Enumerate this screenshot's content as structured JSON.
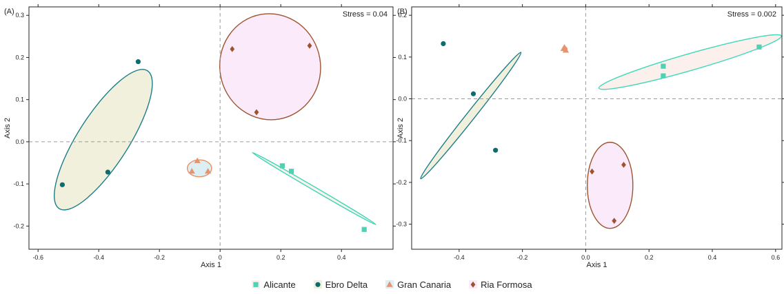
{
  "chart_data": [
    {
      "type": "scatter",
      "panel_label": "(A)",
      "stress_label": "Stress = 0.04",
      "xlabel": "Axis 1",
      "ylabel": "Axis 2",
      "xlim": [
        -0.63,
        0.57
      ],
      "ylim": [
        -0.255,
        0.32
      ],
      "xticks": [
        -0.6,
        -0.4,
        -0.2,
        0,
        0.2,
        0.4
      ],
      "xtick_labels": [
        "-0.6",
        "-0.4",
        "-0.2",
        "0",
        "0.2",
        "0.4"
      ],
      "yticks": [
        -0.2,
        -0.1,
        0,
        0.1,
        0.2,
        0.3
      ],
      "ytick_labels": [
        "-0.2",
        "-0.1",
        "0.0",
        "0.1",
        "0.2",
        "0.3"
      ],
      "reference_lines": {
        "x": 0,
        "y": 0
      },
      "grid": false,
      "series": [
        {
          "name": "Alicante",
          "marker": "square",
          "color": "#4fd1b4",
          "fill": "#fbf0ec",
          "stroke": "#3fd8b8",
          "points": [
            [
              0.205,
              -0.057
            ],
            [
              0.235,
              -0.07
            ],
            [
              0.475,
              -0.208
            ]
          ],
          "ellipse": {
            "cx": 0.31,
            "cy": -0.111,
            "rx": 0.236,
            "ry": 0.004,
            "angle": -30.3
          }
        },
        {
          "name": "Ebro Delta",
          "marker": "circle",
          "color": "#0b6e6e",
          "fill": "#f1f0dc",
          "stroke": "#1b7d8a",
          "points": [
            [
              -0.52,
              -0.102
            ],
            [
              -0.37,
              -0.072
            ],
            [
              -0.27,
              0.19
            ]
          ],
          "ellipse": {
            "cx": -0.385,
            "cy": 0.005,
            "rx": 0.27,
            "ry": 0.06,
            "angle": 57.4
          }
        },
        {
          "name": "Gran Canaria",
          "marker": "triangle",
          "color": "#e8926e",
          "fill": "#dcf0f3",
          "stroke": "#ea8f68",
          "points": [
            [
              -0.093,
              -0.07
            ],
            [
              -0.075,
              -0.045
            ],
            [
              -0.04,
              -0.07
            ]
          ],
          "ellipse": {
            "cx": -0.068,
            "cy": -0.063,
            "rx": 0.04,
            "ry": 0.02,
            "angle": 0
          }
        },
        {
          "name": "Ria Formosa",
          "marker": "diamond",
          "color": "#9c5430",
          "fill": "#fbeafa",
          "stroke": "#9c5430",
          "points": [
            [
              0.04,
              0.22
            ],
            [
              0.295,
              0.228
            ],
            [
              0.12,
              0.07
            ]
          ],
          "ellipse": {
            "cx": 0.165,
            "cy": 0.178,
            "rx": 0.166,
            "ry": 0.126,
            "angle": 10
          }
        }
      ]
    },
    {
      "type": "scatter",
      "panel_label": "(B)",
      "stress_label": "Stress = 0.002",
      "xlabel": "Axis 1",
      "ylabel": "Axis 2",
      "xlim": [
        -0.55,
        0.62
      ],
      "ylim": [
        -0.36,
        0.22
      ],
      "xticks": [
        -0.4,
        -0.2,
        0,
        0.2,
        0.4,
        0.6
      ],
      "xtick_labels": [
        "-0.4",
        "-0.2",
        "0.0",
        "0.2",
        "0.4",
        "0.6"
      ],
      "yticks": [
        -0.3,
        -0.2,
        -0.1,
        0,
        0.1,
        0.2
      ],
      "ytick_labels": [
        "-0.3",
        "-0.2",
        "-0.1",
        "0.0",
        "0.1",
        "0.2"
      ],
      "reference_lines": {
        "x": 0,
        "y": 0
      },
      "grid": false,
      "series": [
        {
          "name": "Alicante",
          "marker": "square",
          "color": "#4fd1b4",
          "fill": "#fbf0ec",
          "stroke": "#3fd8b8",
          "points": [
            [
              0.245,
              0.078
            ],
            [
              0.245,
              0.055
            ],
            [
              0.548,
              0.124
            ]
          ],
          "ellipse": {
            "cx": 0.33,
            "cy": 0.088,
            "rx": 0.3,
            "ry": 0.02,
            "angle": 16
          }
        },
        {
          "name": "Ebro Delta",
          "marker": "circle",
          "color": "#0b6e6e",
          "fill": "#f1f0dc",
          "stroke": "#1b7d8a",
          "points": [
            [
              -0.45,
              0.132
            ],
            [
              -0.355,
              0.012
            ],
            [
              -0.285,
              -0.123
            ]
          ],
          "ellipse": {
            "cx": -0.363,
            "cy": -0.04,
            "rx": 0.255,
            "ry": 0.01,
            "angle": 51.6
          }
        },
        {
          "name": "Gran Canaria",
          "marker": "triangle",
          "color": "#e8926e",
          "fill": "#dcf0f3",
          "stroke": "#ea8f68",
          "points": [
            [
              -0.07,
              0.12
            ],
            [
              -0.063,
              0.116
            ],
            [
              -0.067,
              0.123
            ]
          ],
          "ellipse": {
            "cx": -0.066,
            "cy": 0.119,
            "rx": 0.007,
            "ry": 0.005,
            "angle": 0
          }
        },
        {
          "name": "Ria Formosa",
          "marker": "diamond",
          "color": "#9c5430",
          "fill": "#fbeafa",
          "stroke": "#9c5430",
          "points": [
            [
              0.02,
              -0.174
            ],
            [
              0.12,
              -0.158
            ],
            [
              0.09,
              -0.292
            ]
          ],
          "ellipse": {
            "cx": 0.077,
            "cy": -0.207,
            "rx": 0.072,
            "ry": 0.103,
            "angle": 0
          }
        }
      ]
    }
  ],
  "legend": {
    "placement": "bottom",
    "entries": [
      {
        "label": "Alicante",
        "marker": "square",
        "color": "#4fd1b4",
        "fill": "#fbf0ec"
      },
      {
        "label": "Ebro Delta",
        "marker": "circle",
        "color": "#0b6e6e",
        "fill": "#f1f0dc"
      },
      {
        "label": "Gran Canaria",
        "marker": "triangle",
        "color": "#e8926e",
        "fill": "#dcf0f3"
      },
      {
        "label": "Ria Formosa",
        "marker": "diamond",
        "color": "#9c5430",
        "fill": "#fbeafa"
      }
    ]
  }
}
